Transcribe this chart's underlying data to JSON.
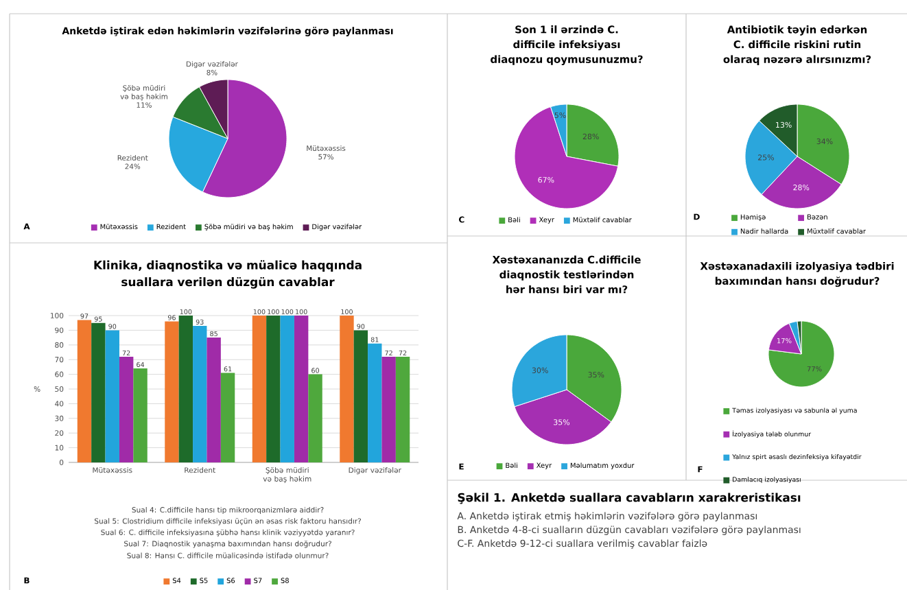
{
  "chart_data": [
    {
      "type": "pie",
      "title": "Anketdə iştirak edən həkimlərin vəzifələrinə görə paylanması",
      "categories": [
        "Mütəxəssis",
        "Rezident",
        "Şöbə müdiri və baş həkim",
        "Digər vəzifələr"
      ],
      "values": [
        57,
        24,
        11,
        8
      ],
      "colors": [
        "#a52fb2",
        "#27a8de",
        "#2a7a30",
        "#5e1c55"
      ],
      "value_labels": [
        "57%",
        "24%",
        "11%",
        "8%"
      ],
      "legend": "bottom",
      "annotations": [
        "A"
      ]
    },
    {
      "type": "bar",
      "title": "Klinika, diaqnostika və müalicə haqqında suallara verilən düzgün cavablar",
      "ylabel": "%",
      "categories": [
        "Mütəxəssis",
        "Rezident",
        "Şöbə müdiri və baş həkim",
        "Digər vəzifələr"
      ],
      "series": [
        {
          "name": "S4",
          "color": "#f0792f",
          "values": [
            97,
            96,
            100,
            100
          ]
        },
        {
          "name": "S5",
          "color": "#1e6b2a",
          "values": [
            95,
            100,
            100,
            90
          ]
        },
        {
          "name": "S6",
          "color": "#22a5dc",
          "values": [
            90,
            93,
            100,
            81
          ]
        },
        {
          "name": "S7",
          "color": "#a02ba8",
          "values": [
            72,
            85,
            100,
            72
          ]
        },
        {
          "name": "S8",
          "color": "#4fa83d",
          "values": [
            64,
            61,
            60,
            72
          ]
        }
      ],
      "ylim": [
        0,
        100
      ],
      "yticks": [
        0,
        10,
        20,
        30,
        40,
        50,
        60,
        70,
        80,
        90,
        100
      ],
      "grid": "y",
      "data_labels": true,
      "legend": "bottom",
      "annotations": [
        "B",
        "Sual 4: C.difficile hansı tip mikroorqanizmlərə aiddir?",
        "Sual 5: Clostridium difficile infeksiyası üçün ən əsas risk faktoru hansıdır?",
        "Sual 6: C. difficile infeksiyasına şübhə hansı klinik vəziyyətdə yaranır?",
        "Sual 7: Diaqnostik yanaşma baxımından hansı doğrudur?",
        "Sual 8: Hansı C. difficile müalicəsində istifadə olunmur?"
      ]
    },
    {
      "type": "pie",
      "title": "Son 1 il ərzində C. difficile infeksiyası diaqnozu qoymusunuzmu?",
      "categories": [
        "Bəli",
        "Xeyr",
        "Müxtəlif cavablar"
      ],
      "values": [
        28,
        67,
        5
      ],
      "colors": [
        "#4aa83b",
        "#b02fb8",
        "#2ba6dc"
      ],
      "value_labels": [
        "28%",
        "67%",
        "5%"
      ],
      "legend": "bottom",
      "annotations": [
        "C"
      ]
    },
    {
      "type": "pie",
      "title": "Antibiotik təyin edərkən C. difficile riskini rutin olaraq nəzərə alırsınızmı?",
      "categories": [
        "Həmişə",
        "Bəzən",
        "Nadir hallarda",
        "Müxtəlif cavablar"
      ],
      "values": [
        34,
        28,
        25,
        13
      ],
      "colors": [
        "#4aa83b",
        "#a52fb2",
        "#2ba6dc",
        "#215c2a"
      ],
      "value_labels": [
        "34%",
        "28%",
        "25%",
        "13%"
      ],
      "legend": "bottom",
      "annotations": [
        "D"
      ]
    },
    {
      "type": "pie",
      "title": "Xəstəxananızda C.difficile diaqnostik testlərindən hər hansı biri var mı?",
      "categories": [
        "Bəli",
        "Xeyr",
        "Məlumatım yoxdur"
      ],
      "values": [
        35,
        35,
        30
      ],
      "colors": [
        "#4aa83b",
        "#a52fb2",
        "#2ba6dc"
      ],
      "value_labels": [
        "35%",
        "35%",
        "30%"
      ],
      "legend": "bottom",
      "annotations": [
        "E"
      ]
    },
    {
      "type": "pie",
      "title": "Xəstəxanadaxili izolyasiya tədbiri baxımından hansı doğrudur?",
      "categories": [
        "Təmas izolyasiyası və sabunla əl yuma",
        "İzolyasiya tələb olunmur",
        "Yalnız spirt əsaslı dezinfeksiya kifayətdir",
        "Damlacıq izolyasiyası"
      ],
      "values": [
        77,
        17,
        4,
        2
      ],
      "colors": [
        "#4aa83b",
        "#a52fb2",
        "#2ba6dc",
        "#215c2a"
      ],
      "value_labels": [
        "77%",
        "17%",
        null,
        null
      ],
      "legend": "bottom",
      "annotations": [
        "F"
      ]
    },
    {
      "type": "other",
      "title": "Şəkil 1. Anketdə suallara cavabların xarakreristikası",
      "annotations": [
        "A. Anketdə iştirak etmiş həkimlərin vəzifələrə görə paylanması",
        "B. Anketdə 4-8-ci sualların düzgün cavabları vəzifələrə görə paylanması",
        "C-F. Anketdə 9-12-ci suallara verilmiş cavablar faizlə"
      ]
    }
  ]
}
